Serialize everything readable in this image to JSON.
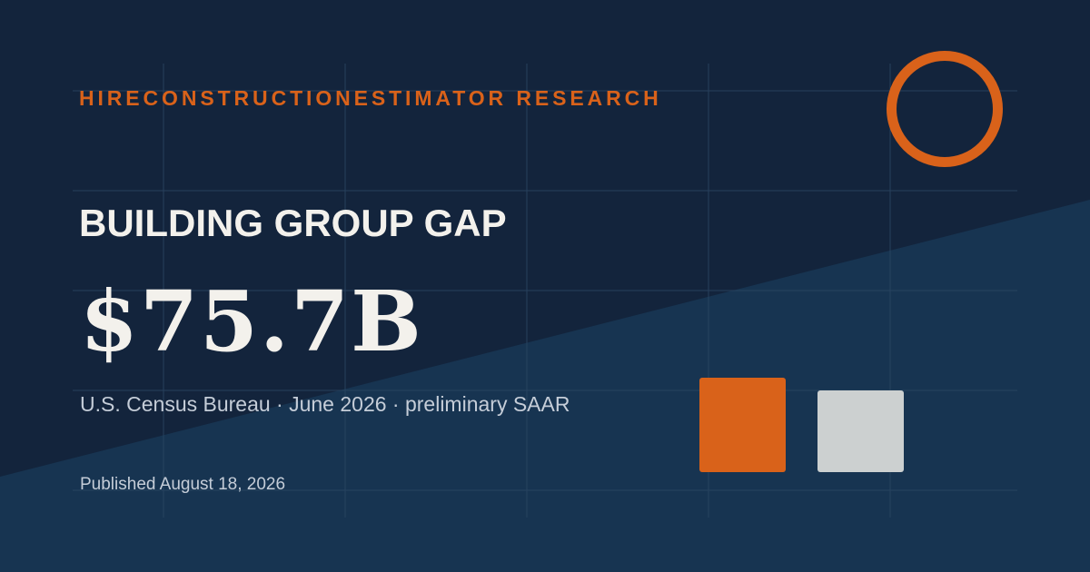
{
  "brand": {
    "label": "HIRECONSTRUCTIONESTIMATOR RESEARCH",
    "accent_color": "#d9621a"
  },
  "headline": "BUILDING GROUP GAP",
  "metric": {
    "value": "$75.7B"
  },
  "source_line": "U.S. Census Bureau · June 2026 · preliminary SAAR",
  "published_line": "Published August 18, 2026",
  "colors": {
    "background_dark": "#13243c",
    "background_light": "#173451",
    "gray_swatch": "#ccd0d0",
    "text_primary": "#f3f1ec",
    "text_secondary": "#c5cdd8"
  }
}
